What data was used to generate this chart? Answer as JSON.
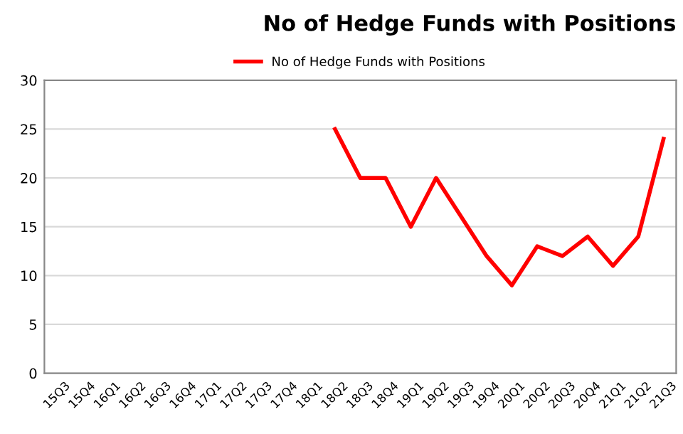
{
  "chart_data": {
    "type": "line",
    "title": "No of Hedge Funds with Positions",
    "categories": [
      "15Q3",
      "15Q4",
      "16Q1",
      "16Q2",
      "16Q3",
      "16Q4",
      "17Q1",
      "17Q2",
      "17Q3",
      "17Q4",
      "18Q1",
      "18Q2",
      "18Q3",
      "18Q4",
      "19Q1",
      "19Q2",
      "19Q3",
      "19Q4",
      "20Q1",
      "20Q2",
      "20Q3",
      "20Q4",
      "21Q1",
      "21Q2",
      "21Q3"
    ],
    "series": [
      {
        "name": "No of Hedge Funds with Positions",
        "color": "#ff0000",
        "values": [
          null,
          null,
          null,
          null,
          null,
          null,
          null,
          null,
          null,
          null,
          null,
          25,
          20,
          20,
          15,
          20,
          16,
          12,
          9,
          13,
          12,
          14,
          11,
          14,
          24
        ]
      }
    ],
    "ylim": [
      0,
      30
    ],
    "yticks": [
      0,
      5,
      10,
      15,
      20,
      25,
      30
    ],
    "grid": "y",
    "legend": "top",
    "marker": "none",
    "line_style": "solid"
  }
}
